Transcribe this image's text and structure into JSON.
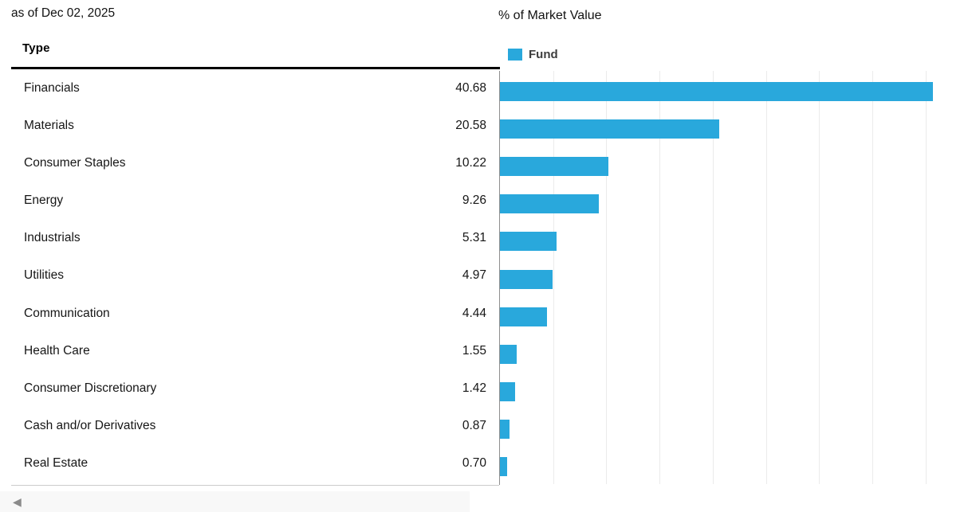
{
  "page": {
    "as_of": "as of Dec 02, 2025",
    "table_header": "Type",
    "chart_header": "% of Market Value",
    "legend_label": "Fund"
  },
  "colors": {
    "bar": "#29a8dc",
    "axis": "#8f8f8f",
    "gridline": "#ebebeb",
    "header_line": "#000000",
    "scroll_strip": "#f8f8f8",
    "scroll_arrow": "#8b8b8b"
  },
  "icons": {
    "scroll_left_arrow": "◀"
  },
  "chart_data": {
    "type": "bar",
    "orientation": "horizontal",
    "title": "% of Market Value",
    "legend": [
      "Fund"
    ],
    "legend_position": "top-left",
    "grid": true,
    "gridline_step": 5,
    "xlim": [
      0,
      44
    ],
    "categories": [
      "Financials",
      "Materials",
      "Consumer Staples",
      "Energy",
      "Industrials",
      "Utilities",
      "Communication",
      "Health Care",
      "Consumer Discretionary",
      "Cash and/or Derivatives",
      "Real Estate"
    ],
    "series": [
      {
        "name": "Fund",
        "values": [
          40.68,
          20.58,
          10.22,
          9.26,
          5.31,
          4.97,
          4.44,
          1.55,
          1.42,
          0.87,
          0.7
        ]
      }
    ]
  }
}
